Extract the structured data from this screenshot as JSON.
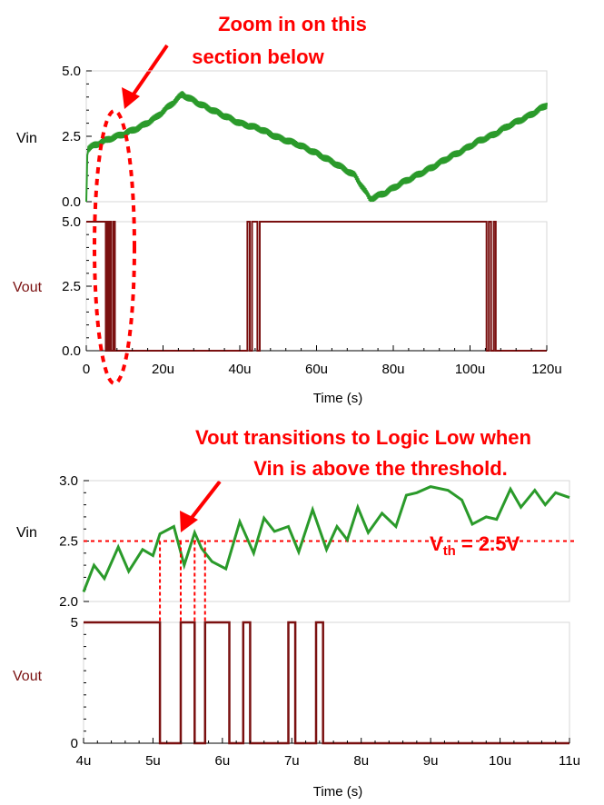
{
  "annotations": {
    "zoom_line1": "Zoom in on this",
    "zoom_line2": "section below",
    "transition_line1": "Vout transitions to Logic Low when",
    "transition_line2": "Vin is above the threshold.",
    "vth_main": "V",
    "vth_sub": "th",
    "vth_value": " = 2.5V"
  },
  "colors": {
    "vin": "#2a9a2a",
    "vout": "#7a1010",
    "annotation": "#ff0000"
  },
  "chart_data": [
    {
      "type": "line",
      "panel": "overview",
      "x_unit": "s",
      "xlabel": "Time (s)",
      "xlim": [
        0,
        120
      ],
      "xticks": [
        "0",
        "20u",
        "40u",
        "60u",
        "80u",
        "100u",
        "120u"
      ],
      "series": [
        {
          "name": "Vin",
          "ylabel": "Vin",
          "ylim": [
            0,
            5
          ],
          "yticks": [
            "0.0",
            "2.5",
            "5.0"
          ],
          "x": [
            0,
            0.3,
            2,
            6,
            10,
            14,
            18,
            22,
            25,
            30,
            35,
            40,
            45,
            50,
            55,
            60,
            65,
            70,
            74,
            78,
            82,
            86,
            90,
            94,
            98,
            102,
            106,
            110,
            115,
            120
          ],
          "values": [
            0.0,
            2.0,
            2.15,
            2.4,
            2.6,
            2.85,
            3.2,
            3.7,
            4.1,
            3.7,
            3.35,
            3.0,
            2.8,
            2.45,
            2.2,
            1.85,
            1.45,
            1.0,
            0.1,
            0.35,
            0.7,
            1.0,
            1.3,
            1.65,
            1.95,
            2.3,
            2.55,
            2.9,
            3.25,
            3.7
          ],
          "noise_amplitude": 0.15
        },
        {
          "name": "Vout",
          "ylabel": "Vout",
          "ylim": [
            0,
            5
          ],
          "yticks": [
            "0.0",
            "2.5",
            "5.0"
          ],
          "x": [
            0,
            0.5,
            0.5,
            5.1,
            5.1,
            5.4,
            5.4,
            5.6,
            5.6,
            5.75,
            5.75,
            6.1,
            6.1,
            6.3,
            6.3,
            6.4,
            6.4,
            6.95,
            6.95,
            7.05,
            7.05,
            7.35,
            7.35,
            7.45,
            7.45,
            42.0,
            42.0,
            42.6,
            42.6,
            43.2,
            43.2,
            44.6,
            44.6,
            45.2,
            45.2,
            104.3,
            104.3,
            104.9,
            104.9,
            105.5,
            105.5,
            106.2,
            106.2,
            106.7,
            106.7,
            120
          ],
          "values": [
            5,
            5,
            5,
            5,
            0,
            0,
            5,
            5,
            0,
            0,
            5,
            5,
            0,
            0,
            5,
            5,
            0,
            0,
            5,
            5,
            0,
            0,
            5,
            5,
            0,
            0,
            5,
            5,
            0,
            0,
            5,
            5,
            0,
            0,
            5,
            5,
            0,
            0,
            5,
            5,
            0,
            0,
            5,
            5,
            0,
            0
          ]
        }
      ]
    },
    {
      "type": "line",
      "panel": "zoom",
      "x_unit": "s",
      "xlabel": "Time (s)",
      "xlim": [
        4,
        11
      ],
      "xticks": [
        "4u",
        "5u",
        "6u",
        "7u",
        "8u",
        "9u",
        "10u",
        "11u"
      ],
      "threshold": 2.5,
      "threshold_crossings": [
        5.1,
        5.4,
        5.6,
        5.75
      ],
      "series": [
        {
          "name": "Vin",
          "ylabel": "Vin",
          "ylim": [
            2.0,
            3.0
          ],
          "yticks": [
            "2.0",
            "2.5",
            "3.0"
          ],
          "x": [
            4.0,
            4.15,
            4.3,
            4.5,
            4.65,
            4.85,
            5.0,
            5.1,
            5.3,
            5.45,
            5.6,
            5.7,
            5.85,
            6.05,
            6.25,
            6.45,
            6.6,
            6.75,
            6.95,
            7.1,
            7.3,
            7.5,
            7.65,
            7.8,
            7.95,
            8.1,
            8.3,
            8.5,
            8.65,
            8.8,
            9.0,
            9.25,
            9.45,
            9.6,
            9.8,
            9.95,
            10.15,
            10.3,
            10.5,
            10.65,
            10.8,
            10.95,
            11.0
          ],
          "values": [
            2.08,
            2.3,
            2.19,
            2.45,
            2.25,
            2.43,
            2.38,
            2.56,
            2.62,
            2.3,
            2.57,
            2.44,
            2.33,
            2.27,
            2.66,
            2.4,
            2.69,
            2.58,
            2.62,
            2.41,
            2.76,
            2.43,
            2.62,
            2.51,
            2.78,
            2.57,
            2.73,
            2.62,
            2.88,
            2.9,
            2.95,
            2.92,
            2.84,
            2.64,
            2.7,
            2.68,
            2.93,
            2.78,
            2.92,
            2.8,
            2.9,
            2.87,
            2.86
          ]
        },
        {
          "name": "Vout",
          "ylabel": "Vout",
          "ylim": [
            0,
            5
          ],
          "yticks": [
            "0",
            "5"
          ],
          "x": [
            4.0,
            5.1,
            5.1,
            5.4,
            5.4,
            5.6,
            5.6,
            5.75,
            5.75,
            6.1,
            6.1,
            6.3,
            6.3,
            6.4,
            6.4,
            6.95,
            6.95,
            7.05,
            7.05,
            7.35,
            7.35,
            7.45,
            7.45,
            11.0
          ],
          "values": [
            5,
            5,
            0,
            0,
            5,
            5,
            0,
            0,
            5,
            5,
            0,
            0,
            5,
            5,
            0,
            0,
            5,
            5,
            0,
            0,
            5,
            5,
            0,
            0
          ]
        }
      ]
    }
  ]
}
